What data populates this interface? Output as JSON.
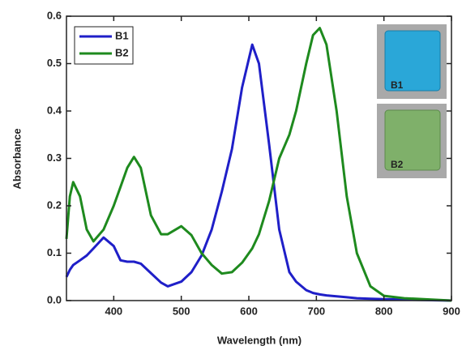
{
  "chart_data": {
    "type": "line",
    "xlabel": "Wavelength (nm)",
    "ylabel": "Absorbance",
    "x": [
      330,
      335,
      340,
      350,
      360,
      370,
      385,
      400,
      410,
      420,
      430,
      440,
      455,
      470,
      480,
      500,
      515,
      530,
      545,
      560,
      575,
      590,
      605,
      615,
      630,
      645,
      660,
      670,
      685,
      695,
      705,
      715,
      730,
      745,
      760,
      780,
      800,
      830,
      900
    ],
    "series": [
      {
        "name": "B1",
        "color": "#1f1fc8",
        "values": [
          0.05,
          0.065,
          0.075,
          0.085,
          0.095,
          0.11,
          0.133,
          0.115,
          0.085,
          0.082,
          0.082,
          0.078,
          0.058,
          0.038,
          0.03,
          0.04,
          0.06,
          0.095,
          0.15,
          0.23,
          0.32,
          0.45,
          0.54,
          0.5,
          0.33,
          0.15,
          0.06,
          0.04,
          0.022,
          0.016,
          0.013,
          0.011,
          0.009,
          0.007,
          0.005,
          0.004,
          0.003,
          0.002,
          0
        ]
      },
      {
        "name": "B2",
        "color": "#1e8a1e",
        "values": [
          0.13,
          0.22,
          0.25,
          0.22,
          0.15,
          0.125,
          0.15,
          0.2,
          0.24,
          0.28,
          0.303,
          0.28,
          0.18,
          0.14,
          0.14,
          0.157,
          0.138,
          0.1,
          0.075,
          0.057,
          0.06,
          0.08,
          0.11,
          0.14,
          0.21,
          0.3,
          0.35,
          0.4,
          0.5,
          0.56,
          0.575,
          0.54,
          0.4,
          0.22,
          0.1,
          0.03,
          0.01,
          0.005,
          0
        ]
      }
    ],
    "xlim": [
      330,
      900
    ],
    "xticks": [
      400,
      500,
      600,
      700,
      800,
      900
    ],
    "ylim": [
      0,
      0.6
    ],
    "yticks": [
      {
        "value": 0,
        "label": "0.0"
      },
      0.1,
      0.2,
      0.3,
      0.4,
      0.5,
      0.6
    ],
    "legend": "upper left",
    "annotations": [
      "B1",
      "B2"
    ]
  }
}
